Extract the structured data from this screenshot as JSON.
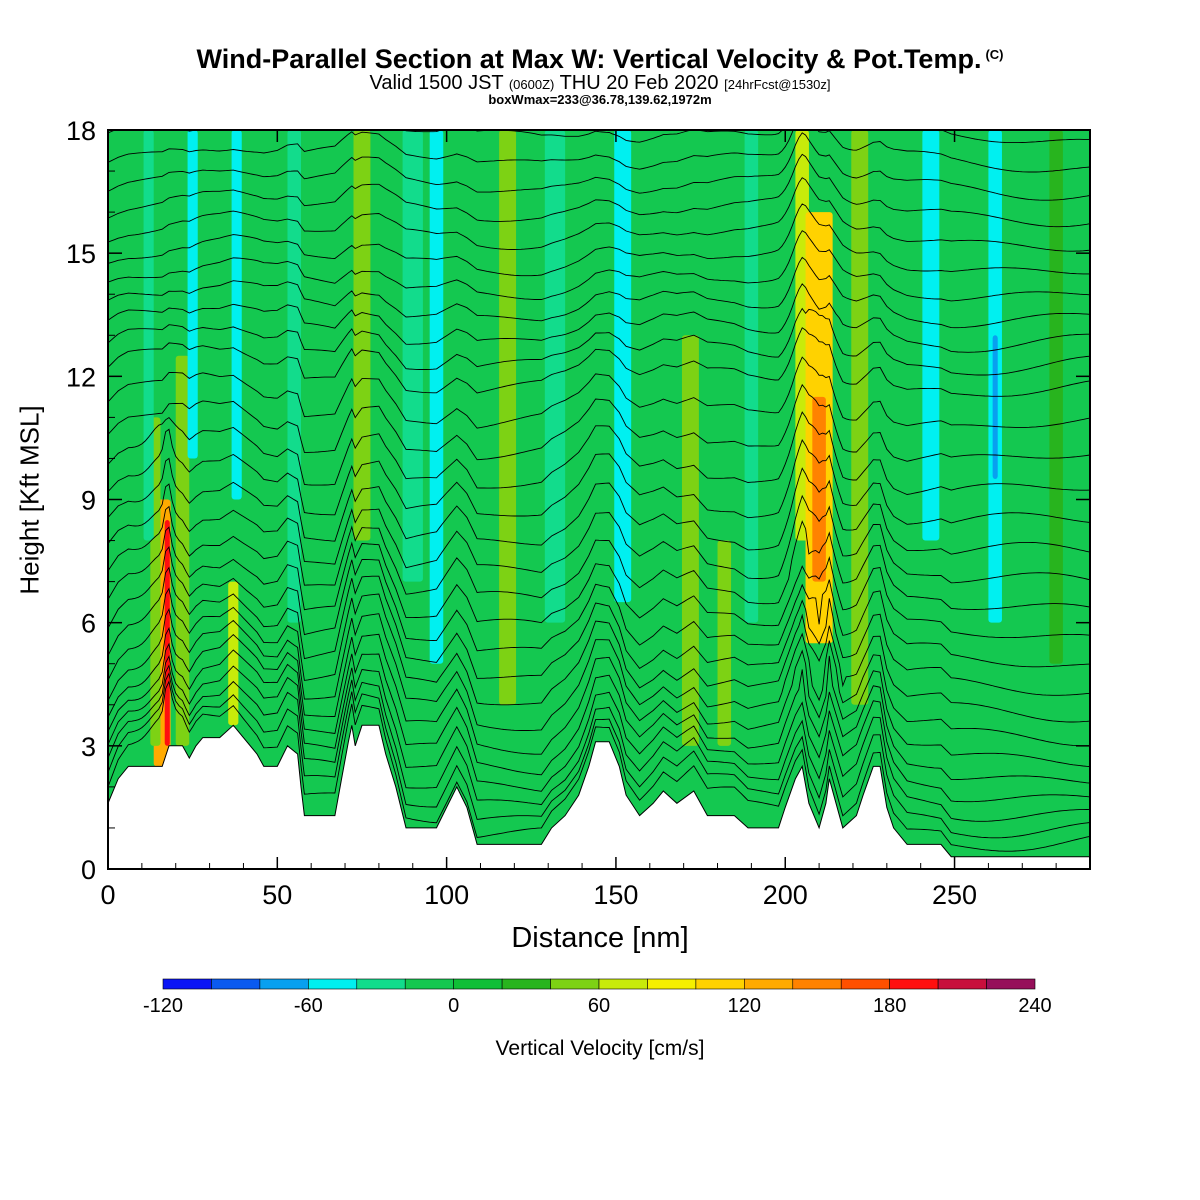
{
  "header": {
    "title": "Wind-Parallel Section at Max W: Vertical Velocity & Pot.Temp.",
    "title_mark": "(C)",
    "valid_prefix": "Valid 1500 JST",
    "valid_utc": "(0600Z)",
    "valid_date": "THU 20 Feb 2020",
    "forecast": "[24hrFcst@1530z]",
    "boxinfo": "boxWmax=233@36.78,139.62,1972m"
  },
  "chart_data": {
    "type": "heatmap",
    "xlabel": "Distance [nm]",
    "ylabel": "Height [Kft MSL]",
    "xlim": [
      0,
      290
    ],
    "ylim": [
      0,
      18
    ],
    "x_ticks": [
      0,
      50,
      100,
      150,
      200,
      250
    ],
    "y_ticks": [
      0,
      3,
      6,
      9,
      12,
      15,
      18
    ],
    "colorbar": {
      "label": "Vertical Velocity [cm/s]",
      "ticks": [
        -120,
        -60,
        0,
        60,
        120,
        180,
        240
      ],
      "levels": [
        -120,
        -100,
        -80,
        -60,
        -40,
        -20,
        0,
        20,
        40,
        60,
        80,
        100,
        120,
        140,
        160,
        180,
        200,
        220,
        240
      ],
      "colors": [
        "#0a14f5",
        "#0a5af0",
        "#08a0f0",
        "#00f0f0",
        "#12dc8c",
        "#14c850",
        "#0fbf37",
        "#28b41e",
        "#7dd214",
        "#c8eb0a",
        "#f5f000",
        "#ffd200",
        "#ffaa00",
        "#ff8200",
        "#ff5000",
        "#ff0f0f",
        "#c80f3c",
        "#960f5a",
        "#6e0f96"
      ]
    },
    "background_color": "#14c850",
    "velocity_features": [
      {
        "x": 16,
        "x_width": 5,
        "z_bottom": 2.5,
        "z_top": 9.0,
        "w": 130,
        "kind": "updraft"
      },
      {
        "x": 17.5,
        "x_width": 1.5,
        "z_bottom": 3.0,
        "z_top": 8.5,
        "w": 190,
        "kind": "updraft"
      },
      {
        "x": 14,
        "x_width": 3,
        "z_bottom": 3.0,
        "z_top": 11.0,
        "w": 55,
        "kind": "updraft"
      },
      {
        "x": 22,
        "x_width": 4,
        "z_bottom": 3.0,
        "z_top": 12.5,
        "w": 50,
        "kind": "updraft"
      },
      {
        "x": 37,
        "x_width": 3,
        "z_bottom": 3.5,
        "z_top": 7.0,
        "w": 60,
        "kind": "updraft"
      },
      {
        "x": 12,
        "x_width": 3,
        "z_bottom": 8.0,
        "z_top": 18.0,
        "w": -40,
        "kind": "downdraft"
      },
      {
        "x": 25,
        "x_width": 3,
        "z_bottom": 10.0,
        "z_top": 18.0,
        "w": -45,
        "kind": "downdraft"
      },
      {
        "x": 38,
        "x_width": 3,
        "z_bottom": 9.0,
        "z_top": 18.0,
        "w": -50,
        "kind": "downdraft"
      },
      {
        "x": 55,
        "x_width": 4,
        "z_bottom": 6.0,
        "z_top": 18.0,
        "w": -25,
        "kind": "downdraft"
      },
      {
        "x": 75,
        "x_width": 5,
        "z_bottom": 8.0,
        "z_top": 18.0,
        "w": 45,
        "kind": "updraft"
      },
      {
        "x": 90,
        "x_width": 6,
        "z_bottom": 7.0,
        "z_top": 18.0,
        "w": -30,
        "kind": "downdraft"
      },
      {
        "x": 97,
        "x_width": 4,
        "z_bottom": 5.0,
        "z_top": 18.0,
        "w": -45,
        "kind": "downdraft"
      },
      {
        "x": 118,
        "x_width": 5,
        "z_bottom": 4.0,
        "z_top": 18.0,
        "w": 40,
        "kind": "updraft"
      },
      {
        "x": 132,
        "x_width": 6,
        "z_bottom": 6.0,
        "z_top": 18.0,
        "w": -30,
        "kind": "downdraft"
      },
      {
        "x": 152,
        "x_width": 5,
        "z_bottom": 6.5,
        "z_top": 18.0,
        "w": -50,
        "kind": "downdraft"
      },
      {
        "x": 172,
        "x_width": 5,
        "z_bottom": 3.0,
        "z_top": 13.0,
        "w": 40,
        "kind": "updraft"
      },
      {
        "x": 182,
        "x_width": 4,
        "z_bottom": 3.0,
        "z_top": 8.0,
        "w": 55,
        "kind": "updraft"
      },
      {
        "x": 190,
        "x_width": 4,
        "z_bottom": 6.0,
        "z_top": 18.0,
        "w": -35,
        "kind": "downdraft"
      },
      {
        "x": 205,
        "x_width": 4,
        "z_bottom": 8.0,
        "z_top": 18.0,
        "w": 75,
        "kind": "updraft"
      },
      {
        "x": 210,
        "x_width": 8,
        "z_bottom": 5.5,
        "z_top": 16.0,
        "w": 110,
        "kind": "updraft"
      },
      {
        "x": 210,
        "x_width": 4,
        "z_bottom": 7.0,
        "z_top": 11.5,
        "w": 140,
        "kind": "updraft"
      },
      {
        "x": 222,
        "x_width": 5,
        "z_bottom": 4.0,
        "z_top": 18.0,
        "w": 50,
        "kind": "updraft"
      },
      {
        "x": 243,
        "x_width": 5,
        "z_bottom": 8.0,
        "z_top": 18.0,
        "w": -50,
        "kind": "downdraft"
      },
      {
        "x": 262,
        "x_width": 4,
        "z_bottom": 6.0,
        "z_top": 18.0,
        "w": -60,
        "kind": "downdraft"
      },
      {
        "x": 262,
        "x_width": 1.5,
        "z_bottom": 9.5,
        "z_top": 13.0,
        "w": -80,
        "kind": "downdraft"
      },
      {
        "x": 280,
        "x_width": 4,
        "z_bottom": 5.0,
        "z_top": 18.0,
        "w": 20,
        "kind": "updraft"
      }
    ],
    "terrain": [
      {
        "x": 0,
        "z": 1.6
      },
      {
        "x": 3,
        "z": 2.2
      },
      {
        "x": 6,
        "z": 2.5
      },
      {
        "x": 16,
        "z": 2.5
      },
      {
        "x": 18,
        "z": 3.0
      },
      {
        "x": 22,
        "z": 3.0
      },
      {
        "x": 24,
        "z": 2.7
      },
      {
        "x": 26,
        "z": 3.0
      },
      {
        "x": 28,
        "z": 3.2
      },
      {
        "x": 33,
        "z": 3.2
      },
      {
        "x": 37,
        "z": 3.5
      },
      {
        "x": 40,
        "z": 3.2
      },
      {
        "x": 44,
        "z": 2.8
      },
      {
        "x": 46,
        "z": 2.5
      },
      {
        "x": 50,
        "z": 2.5
      },
      {
        "x": 53,
        "z": 3.0
      },
      {
        "x": 56,
        "z": 2.8
      },
      {
        "x": 57,
        "z": 2.0
      },
      {
        "x": 58,
        "z": 1.3
      },
      {
        "x": 67,
        "z": 1.3
      },
      {
        "x": 69,
        "z": 2.2
      },
      {
        "x": 71,
        "z": 3.1
      },
      {
        "x": 72,
        "z": 3.5
      },
      {
        "x": 73,
        "z": 3.0
      },
      {
        "x": 75,
        "z": 3.5
      },
      {
        "x": 80,
        "z": 3.5
      },
      {
        "x": 82,
        "z": 2.8
      },
      {
        "x": 85,
        "z": 2.0
      },
      {
        "x": 88,
        "z": 1.0
      },
      {
        "x": 97,
        "z": 1.0
      },
      {
        "x": 100,
        "z": 1.5
      },
      {
        "x": 103,
        "z": 2.0
      },
      {
        "x": 106,
        "z": 1.5
      },
      {
        "x": 109,
        "z": 0.6
      },
      {
        "x": 128,
        "z": 0.6
      },
      {
        "x": 131,
        "z": 1.0
      },
      {
        "x": 135,
        "z": 1.3
      },
      {
        "x": 139,
        "z": 1.8
      },
      {
        "x": 142,
        "z": 2.5
      },
      {
        "x": 144,
        "z": 3.1
      },
      {
        "x": 148,
        "z": 3.1
      },
      {
        "x": 151,
        "z": 2.5
      },
      {
        "x": 153,
        "z": 1.8
      },
      {
        "x": 157,
        "z": 1.3
      },
      {
        "x": 161,
        "z": 1.6
      },
      {
        "x": 164,
        "z": 1.9
      },
      {
        "x": 168,
        "z": 1.6
      },
      {
        "x": 173,
        "z": 1.9
      },
      {
        "x": 177,
        "z": 1.3
      },
      {
        "x": 185,
        "z": 1.3
      },
      {
        "x": 189,
        "z": 1.0
      },
      {
        "x": 198,
        "z": 1.0
      },
      {
        "x": 200,
        "z": 1.5
      },
      {
        "x": 203,
        "z": 2.2
      },
      {
        "x": 205,
        "z": 2.5
      },
      {
        "x": 207,
        "z": 1.6
      },
      {
        "x": 210,
        "z": 1.0
      },
      {
        "x": 212,
        "z": 1.6
      },
      {
        "x": 213,
        "z": 2.2
      },
      {
        "x": 215,
        "z": 1.6
      },
      {
        "x": 217,
        "z": 1.0
      },
      {
        "x": 221,
        "z": 1.3
      },
      {
        "x": 223,
        "z": 1.8
      },
      {
        "x": 226,
        "z": 2.5
      },
      {
        "x": 228,
        "z": 2.5
      },
      {
        "x": 230,
        "z": 1.5
      },
      {
        "x": 232,
        "z": 1.0
      },
      {
        "x": 236,
        "z": 0.6
      },
      {
        "x": 246,
        "z": 0.6
      },
      {
        "x": 249,
        "z": 0.3
      },
      {
        "x": 290,
        "z": 0.3
      }
    ],
    "theta_contours": {
      "count": 30,
      "surface_spacing": 0.35,
      "top_spacing": 0.62,
      "color": "#000000"
    }
  }
}
